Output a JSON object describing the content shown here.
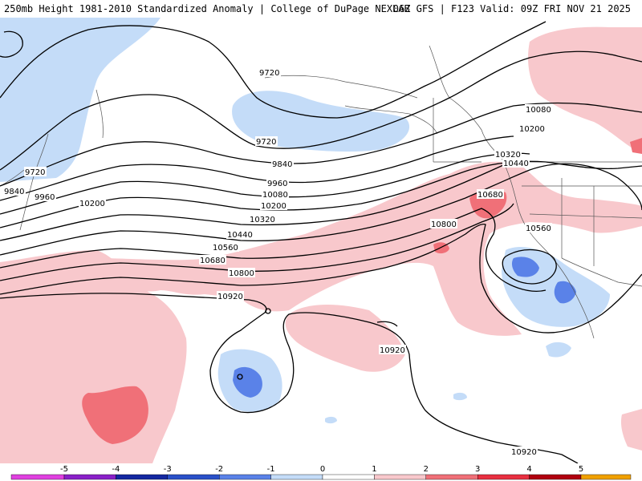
{
  "header": {
    "left": "250mb Height 1981-2010 Standardized Anomaly | College of DuPage NEXLAB",
    "right": "06Z GFS | F123 Valid: 09Z FRI NOV 21 2025"
  },
  "contour_labels": [
    "9720",
    "9720",
    "9720",
    "9840",
    "9840",
    "9960",
    "9960",
    "10080",
    "10080",
    "10200",
    "10200",
    "10200",
    "10320",
    "10320",
    "10440",
    "10440",
    "10560",
    "10560",
    "10680",
    "10680",
    "10800",
    "10800",
    "10920",
    "10920",
    "10920"
  ],
  "legend": {
    "ticks": [
      "-5",
      "-4",
      "-3",
      "-2",
      "-1",
      "0",
      "1",
      "2",
      "3",
      "4",
      "5"
    ],
    "colors": [
      "#e040e0",
      "#8a20c8",
      "#1428a0",
      "#2a50c8",
      "#5a82e8",
      "#c4dcf8",
      "#ffffff",
      "#f8c8cc",
      "#f07078",
      "#e83040",
      "#b00010",
      "#f0a000",
      "#ffd000"
    ]
  }
}
